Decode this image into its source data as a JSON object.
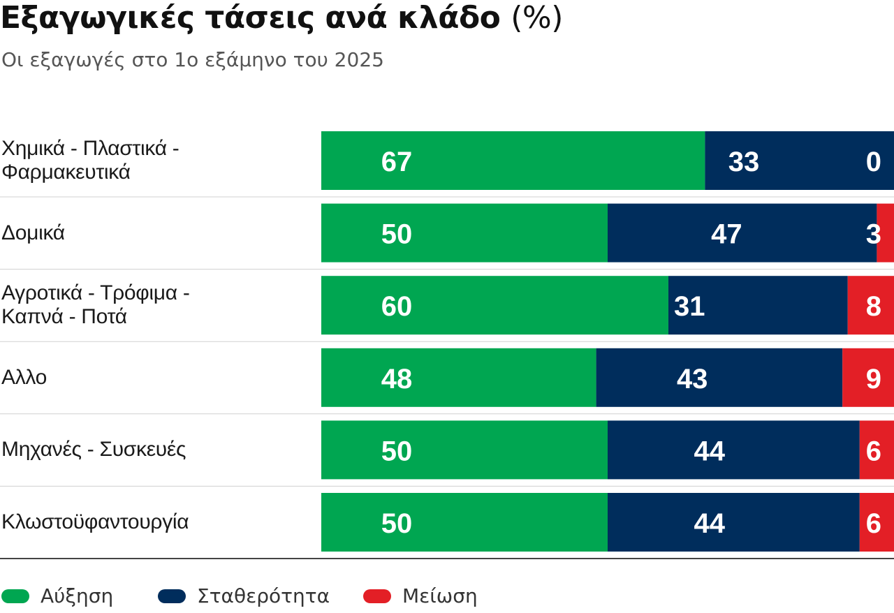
{
  "title": "Εξαγωγικές τάσεις ανά κλάδο",
  "title_unit": "(%)",
  "subtitle": "Οι εξαγωγές στο 1ο εξάμηνο του 2025",
  "chart_data": {
    "type": "bar",
    "stacked": true,
    "orientation": "horizontal",
    "normalized_percent": true,
    "categories": [
      "Χημικά - Πλαστικά - Φαρμακευτικά",
      "Δομικά",
      "Αγροτικά - Τρόφιμα - Καπνά - Ποτά",
      "Αλλο",
      "Μηχανές - Συσκευές",
      "Κλωστοϋφαντουργία"
    ],
    "series": [
      {
        "name": "Αύξηση",
        "color": "#00a651",
        "values": [
          67,
          50,
          60,
          48,
          50,
          50
        ]
      },
      {
        "name": "Σταθερότητα",
        "color": "#002d5c",
        "values": [
          33,
          47,
          31,
          43,
          44,
          44
        ]
      },
      {
        "name": "Μείωση",
        "color": "#e31f26",
        "values": [
          0,
          3,
          8,
          9,
          6,
          6
        ]
      }
    ],
    "legend_position": "bottom-left",
    "grid": false
  }
}
